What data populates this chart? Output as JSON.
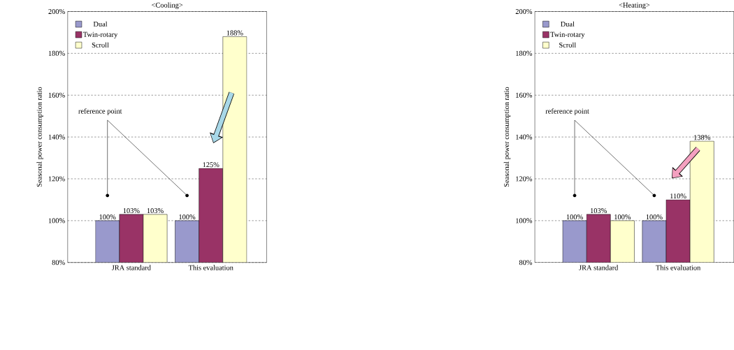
{
  "chart_data": [
    {
      "type": "bar",
      "title": "<Cooling>",
      "ylabel": "Seasonal power consumption ratio",
      "categories": [
        "JRA standard",
        "This evaluation"
      ],
      "series": [
        {
          "name": "Dual",
          "color": "#9999cc",
          "values": [
            100,
            100
          ],
          "value_labels": [
            "100%",
            "100%"
          ]
        },
        {
          "name": "Twin-rotary",
          "color": "#993366",
          "values": [
            103,
            125
          ],
          "value_labels": [
            "103%",
            "125%"
          ]
        },
        {
          "name": "Scroll",
          "color": "#ffffcc",
          "values": [
            103,
            188
          ],
          "value_labels": [
            "103%",
            "188%"
          ]
        }
      ],
      "ylim": [
        80,
        200
      ],
      "yticks": [
        {
          "value": 80,
          "label": "80%"
        },
        {
          "value": 100,
          "label": "100%"
        },
        {
          "value": 120,
          "label": "120%"
        },
        {
          "value": 140,
          "label": "140%"
        },
        {
          "value": 160,
          "label": "160%"
        },
        {
          "value": 180,
          "label": "180%"
        },
        {
          "value": 200,
          "label": "200%"
        }
      ],
      "grid": "y",
      "legend": "top left",
      "annotations": [
        "reference point"
      ]
    },
    {
      "type": "bar",
      "title": "<Heating>",
      "ylabel": "Seasonal power consumption ratio",
      "categories": [
        "JRA standard",
        "This evaluation"
      ],
      "series": [
        {
          "name": "Dual",
          "color": "#9999cc",
          "values": [
            100,
            100
          ],
          "value_labels": [
            "100%",
            "100%"
          ]
        },
        {
          "name": "Twin-rotary",
          "color": "#993366",
          "values": [
            103,
            110
          ],
          "value_labels": [
            "103%",
            "110%"
          ]
        },
        {
          "name": "Scroll",
          "color": "#ffffcc",
          "values": [
            100,
            138
          ],
          "value_labels": [
            "100%",
            "138%"
          ]
        }
      ],
      "ylim": [
        80,
        200
      ],
      "yticks": [
        {
          "value": 80,
          "label": "80%"
        },
        {
          "value": 100,
          "label": "100%"
        },
        {
          "value": 120,
          "label": "120%"
        },
        {
          "value": 140,
          "label": "140%"
        },
        {
          "value": 160,
          "label": "160%"
        },
        {
          "value": 180,
          "label": "180%"
        },
        {
          "value": 200,
          "label": "200%"
        }
      ],
      "grid": "y",
      "legend": "top left",
      "annotations": [
        "reference point"
      ]
    }
  ]
}
